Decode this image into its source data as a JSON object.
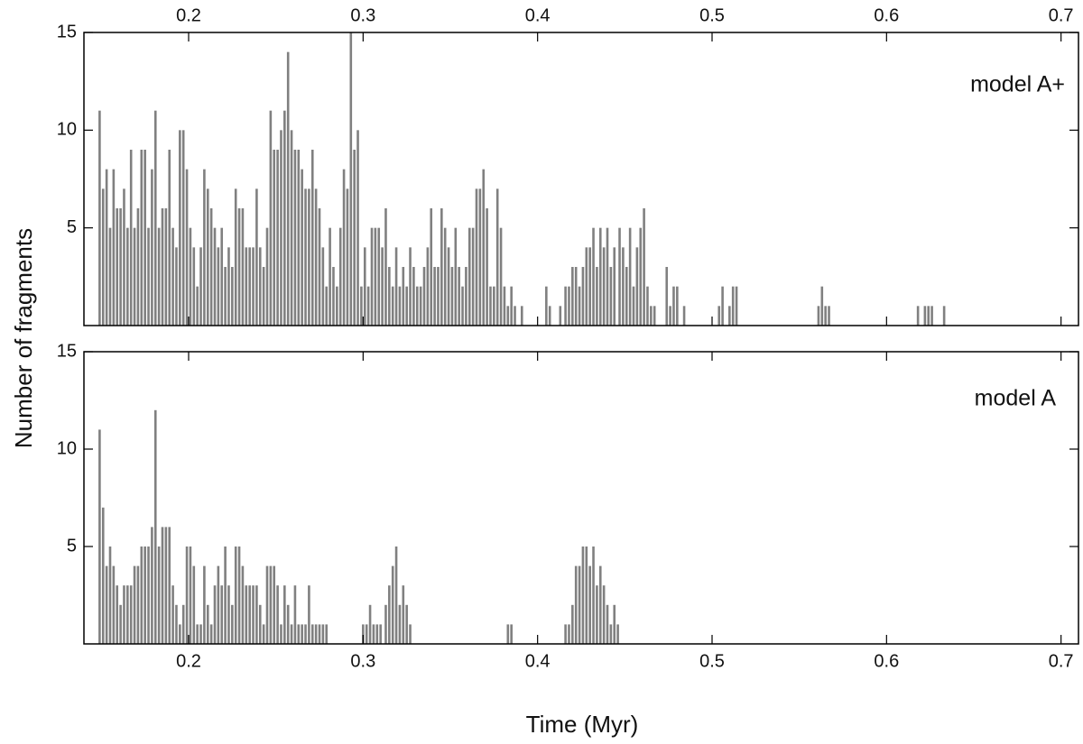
{
  "chart_data": [
    {
      "type": "bar",
      "annotation": "model A+",
      "ylabel": "Number of fragments",
      "color": "#808080",
      "xlim": [
        0.14,
        0.71
      ],
      "ylim": [
        0,
        15
      ],
      "xticks": [
        0.2,
        0.3,
        0.4,
        0.5,
        0.6,
        0.7
      ],
      "yticks": [
        5,
        10,
        15
      ],
      "x": [
        0.149,
        0.151,
        0.153,
        0.155,
        0.157,
        0.159,
        0.161,
        0.163,
        0.165,
        0.167,
        0.169,
        0.171,
        0.173,
        0.175,
        0.177,
        0.179,
        0.181,
        0.183,
        0.185,
        0.187,
        0.189,
        0.191,
        0.193,
        0.195,
        0.197,
        0.199,
        0.201,
        0.203,
        0.205,
        0.207,
        0.209,
        0.211,
        0.213,
        0.215,
        0.217,
        0.219,
        0.221,
        0.223,
        0.225,
        0.227,
        0.229,
        0.231,
        0.233,
        0.235,
        0.237,
        0.239,
        0.241,
        0.243,
        0.245,
        0.247,
        0.249,
        0.251,
        0.253,
        0.255,
        0.257,
        0.259,
        0.261,
        0.263,
        0.265,
        0.267,
        0.269,
        0.271,
        0.273,
        0.275,
        0.277,
        0.279,
        0.281,
        0.283,
        0.285,
        0.287,
        0.289,
        0.291,
        0.293,
        0.295,
        0.297,
        0.299,
        0.301,
        0.303,
        0.305,
        0.307,
        0.309,
        0.311,
        0.313,
        0.315,
        0.317,
        0.319,
        0.321,
        0.323,
        0.325,
        0.327,
        0.329,
        0.331,
        0.333,
        0.335,
        0.337,
        0.339,
        0.341,
        0.343,
        0.345,
        0.347,
        0.349,
        0.351,
        0.353,
        0.355,
        0.357,
        0.359,
        0.361,
        0.363,
        0.365,
        0.367,
        0.369,
        0.371,
        0.373,
        0.375,
        0.377,
        0.379,
        0.381,
        0.383,
        0.385,
        0.387,
        0.391,
        0.405,
        0.407,
        0.413,
        0.416,
        0.418,
        0.42,
        0.422,
        0.424,
        0.426,
        0.428,
        0.43,
        0.432,
        0.434,
        0.436,
        0.438,
        0.44,
        0.442,
        0.444,
        0.447,
        0.449,
        0.451,
        0.453,
        0.455,
        0.457,
        0.459,
        0.461,
        0.463,
        0.465,
        0.467,
        0.474,
        0.476,
        0.478,
        0.48,
        0.484,
        0.504,
        0.506,
        0.51,
        0.512,
        0.514,
        0.561,
        0.563,
        0.565,
        0.567,
        0.618,
        0.622,
        0.624,
        0.626,
        0.633
      ],
      "values": [
        11,
        7,
        8,
        5,
        8,
        6,
        6,
        7,
        5,
        9,
        5,
        6,
        9,
        9,
        5,
        8,
        11,
        5,
        6,
        6,
        9,
        5,
        4,
        10,
        10,
        8,
        5,
        4,
        2,
        4,
        8,
        7,
        6,
        5,
        4,
        5,
        3,
        4,
        3,
        7,
        6,
        6,
        4,
        4,
        4,
        7,
        4,
        3,
        5,
        11,
        9,
        9,
        10,
        11,
        14,
        10,
        9,
        9,
        8,
        7,
        7,
        9,
        7,
        6,
        4,
        2,
        5,
        3,
        2,
        5,
        8,
        7,
        15,
        9,
        10,
        2,
        4,
        2,
        5,
        5,
        5,
        4,
        6,
        3,
        2,
        4,
        2,
        3,
        2,
        4,
        3,
        2,
        2,
        3,
        4,
        6,
        3,
        3,
        6,
        5,
        4,
        3,
        5,
        3,
        2,
        3,
        5,
        5,
        7,
        7,
        8,
        6,
        2,
        2,
        7,
        5,
        2,
        1,
        2,
        1,
        1,
        2,
        1,
        1,
        2,
        2,
        3,
        3,
        2,
        3,
        4,
        4,
        5,
        3,
        5,
        4,
        5,
        3,
        4,
        5,
        4,
        3,
        5,
        2,
        4,
        5,
        6,
        2,
        1,
        1,
        3,
        1,
        2,
        2,
        1,
        1,
        2,
        1,
        2,
        2,
        1,
        2,
        1,
        1,
        1,
        1,
        1,
        1,
        1
      ]
    },
    {
      "type": "bar",
      "annotation": "model A",
      "xlabel": "Time (Myr)",
      "color": "#808080",
      "xlim": [
        0.14,
        0.71
      ],
      "ylim": [
        0,
        15
      ],
      "xticks": [
        0.2,
        0.3,
        0.4,
        0.5,
        0.6,
        0.7
      ],
      "yticks": [
        5,
        10,
        15
      ],
      "x": [
        0.149,
        0.151,
        0.153,
        0.155,
        0.157,
        0.159,
        0.161,
        0.163,
        0.165,
        0.167,
        0.169,
        0.171,
        0.173,
        0.175,
        0.177,
        0.179,
        0.181,
        0.183,
        0.185,
        0.187,
        0.189,
        0.191,
        0.193,
        0.195,
        0.197,
        0.199,
        0.201,
        0.203,
        0.205,
        0.207,
        0.209,
        0.211,
        0.213,
        0.215,
        0.217,
        0.219,
        0.221,
        0.223,
        0.225,
        0.227,
        0.229,
        0.231,
        0.233,
        0.235,
        0.237,
        0.239,
        0.241,
        0.243,
        0.245,
        0.247,
        0.249,
        0.251,
        0.253,
        0.255,
        0.257,
        0.259,
        0.261,
        0.263,
        0.265,
        0.267,
        0.269,
        0.271,
        0.273,
        0.275,
        0.277,
        0.279,
        0.3,
        0.302,
        0.304,
        0.306,
        0.308,
        0.31,
        0.313,
        0.315,
        0.317,
        0.319,
        0.321,
        0.323,
        0.325,
        0.327,
        0.383,
        0.385,
        0.416,
        0.418,
        0.42,
        0.422,
        0.424,
        0.426,
        0.428,
        0.43,
        0.432,
        0.434,
        0.436,
        0.438,
        0.44,
        0.442,
        0.444,
        0.446
      ],
      "values": [
        11,
        7,
        4,
        5,
        4,
        3,
        2,
        3,
        3,
        3,
        4,
        4,
        5,
        5,
        5,
        6,
        12,
        5,
        6,
        6,
        6,
        3,
        2,
        1,
        2,
        5,
        5,
        4,
        1,
        1,
        4,
        2,
        1,
        3,
        4,
        3,
        5,
        3,
        2,
        5,
        5,
        4,
        3,
        3,
        3,
        3,
        2,
        1,
        4,
        4,
        4,
        3,
        1,
        3,
        2,
        1,
        3,
        1,
        1,
        1,
        3,
        1,
        1,
        1,
        1,
        1,
        1,
        1,
        2,
        1,
        1,
        1,
        2,
        3,
        4,
        5,
        2,
        3,
        2,
        1,
        1,
        1,
        1,
        1,
        2,
        4,
        4,
        5,
        5,
        4,
        5,
        3,
        4,
        3,
        2,
        1,
        2,
        1
      ]
    }
  ]
}
